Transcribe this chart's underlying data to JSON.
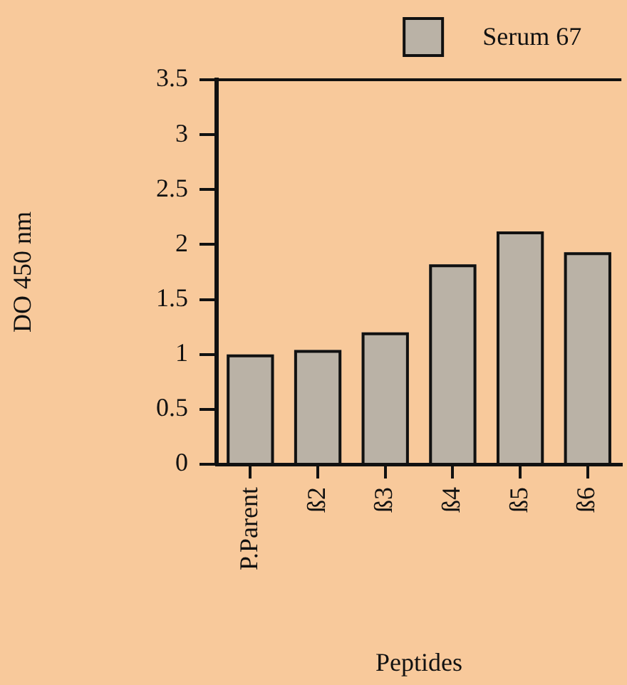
{
  "chart_data": {
    "type": "bar",
    "xlabel": "Peptides",
    "ylabel": "DO 450 nm",
    "categories": [
      "P.Parent",
      "ß2",
      "ß3",
      "ß4",
      "ß5",
      "ß6"
    ],
    "series": [
      {
        "name": "Serum 67",
        "color": "#bab2a6",
        "values": [
          1.0,
          1.04,
          1.2,
          1.82,
          2.12,
          1.93
        ]
      }
    ],
    "ylim": [
      0,
      3.5
    ],
    "yticks": [
      0,
      0.5,
      1,
      1.5,
      2,
      2.5,
      3,
      3.5
    ],
    "legend": "top right"
  }
}
